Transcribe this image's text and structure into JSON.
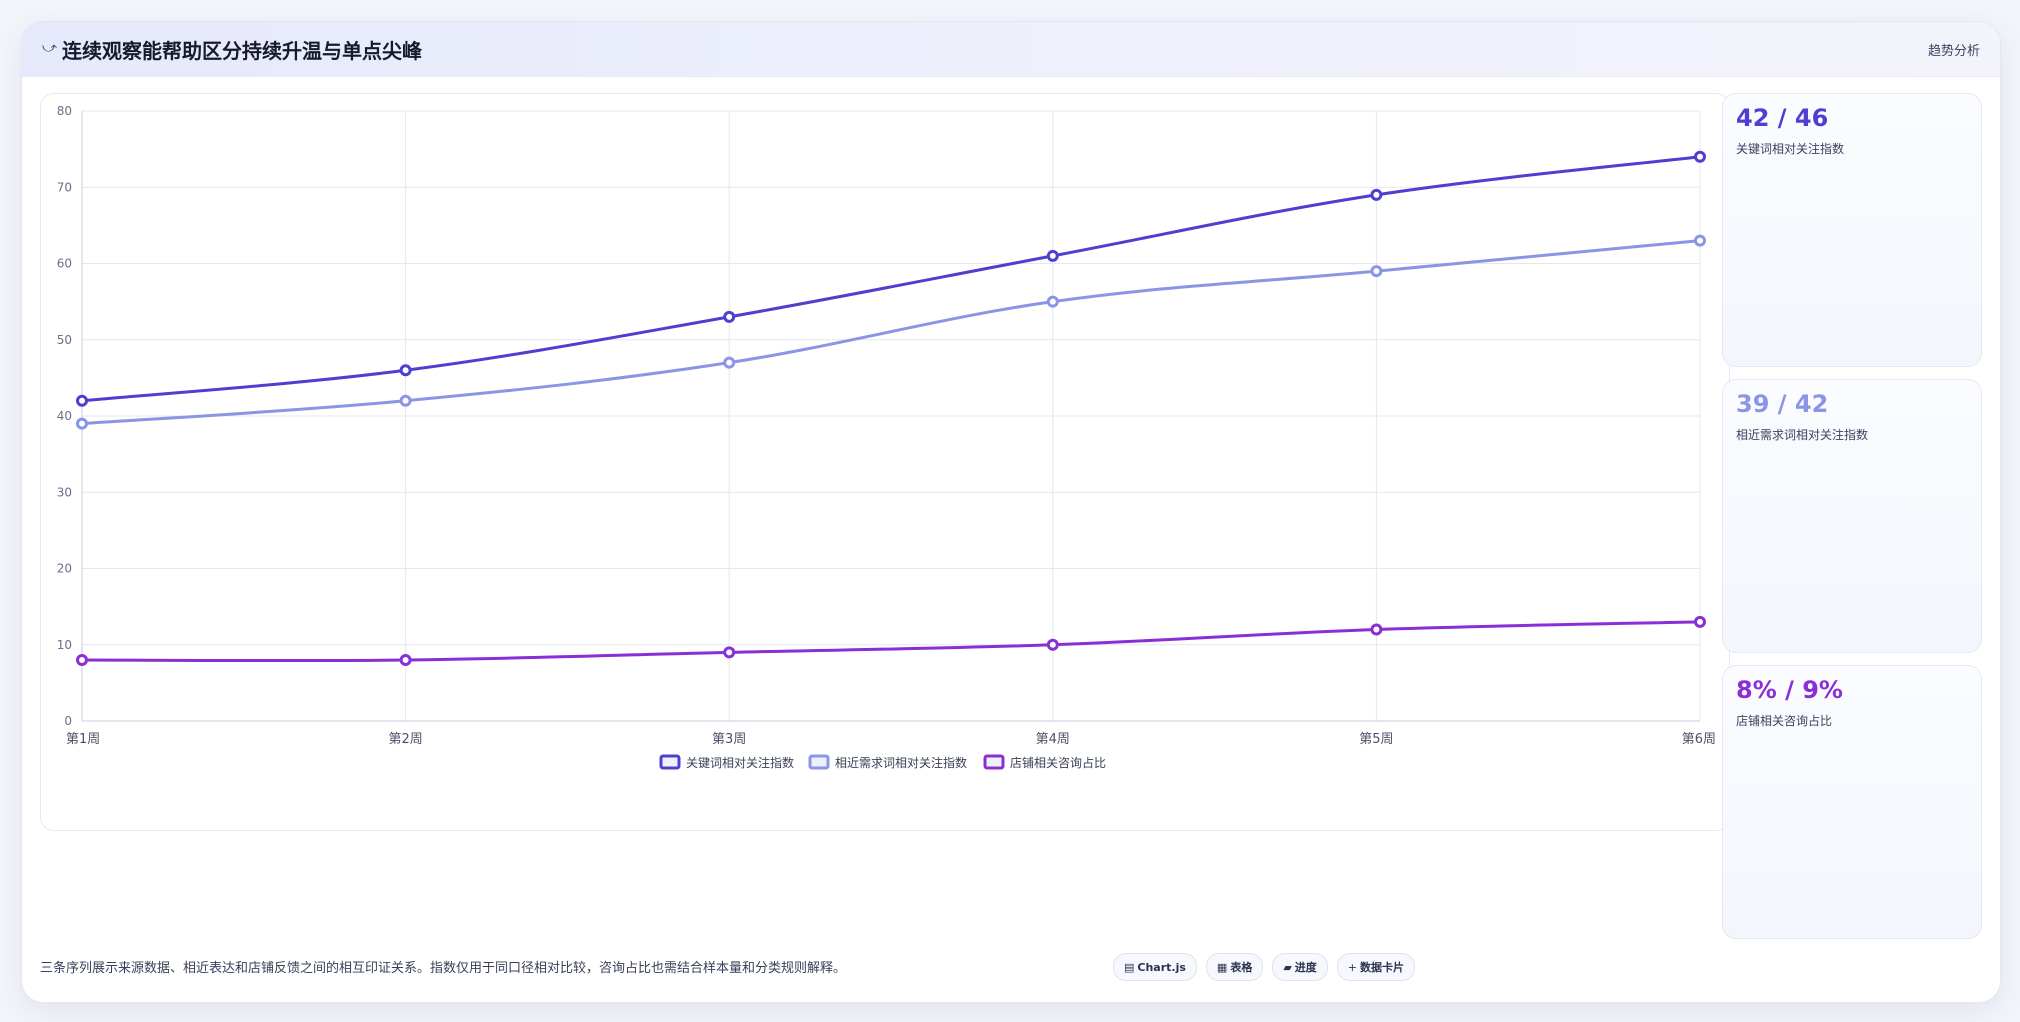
{
  "header": {
    "icon": "chart-trend-icon",
    "title": "连续观察能帮助区分持续升温与单点尖峰",
    "tag": "趋势分析"
  },
  "kpis": [
    {
      "value": "42 / 46",
      "label": "关键词相对关注指数",
      "color": "#4f3fd1"
    },
    {
      "value": "39 / 42",
      "label": "相近需求词相对关注指数",
      "color": "#8a95e6"
    },
    {
      "value": "8% / 9%",
      "label": "店铺相关咨询占比",
      "color": "#8a2fd6"
    }
  ],
  "footnote": "三条序列展示来源数据、相近表达和店铺反馈之间的相互印证关系。指数仅用于同口径相对比较，咨询占比也需结合样本量和分类规则解释。",
  "chips": [
    {
      "icon": "chart-icon",
      "glyph": "▤",
      "label": "Chart.js"
    },
    {
      "icon": "table-icon",
      "glyph": "▦",
      "label": "表格"
    },
    {
      "icon": "progress-icon",
      "glyph": "▰",
      "label": "进度"
    },
    {
      "icon": "data-card-icon",
      "glyph": "+",
      "label": "数据卡片"
    }
  ],
  "chart_data": {
    "type": "line",
    "categories": [
      "第1周",
      "第2周",
      "第3周",
      "第4周",
      "第5周",
      "第6周"
    ],
    "series": [
      {
        "name": "关键词相对关注指数",
        "values": [
          42,
          46,
          53,
          61,
          69,
          74
        ],
        "color": "#4f3fd1"
      },
      {
        "name": "相近需求词相对关注指数",
        "values": [
          39,
          42,
          47,
          55,
          59,
          63
        ],
        "color": "#8a95e6"
      },
      {
        "name": "店铺相关咨询占比",
        "values": [
          8,
          8,
          9,
          10,
          12,
          13
        ],
        "color": "#8a2fd6"
      }
    ],
    "ylim": [
      0,
      80
    ],
    "yticks": [
      0,
      10,
      20,
      30,
      40,
      50,
      60,
      70,
      80
    ],
    "grid": true,
    "legend_position": "bottom"
  }
}
